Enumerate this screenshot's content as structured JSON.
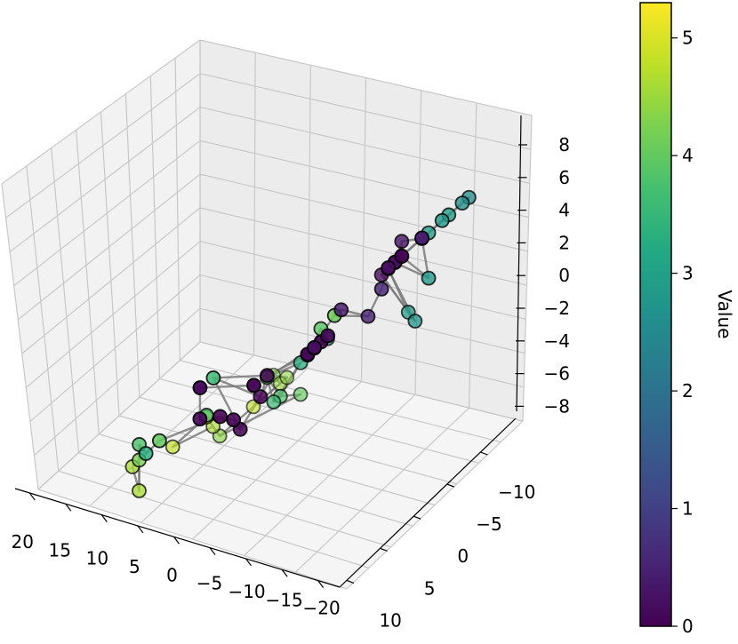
{
  "chart_data": {
    "type": "scatter",
    "projection": "3d",
    "title": "",
    "axes": {
      "x": {
        "label": "",
        "ticks": [
          20,
          15,
          10,
          5,
          0,
          -5,
          -10,
          -15,
          -20
        ]
      },
      "y": {
        "label": "",
        "ticks": [
          -10,
          -5,
          0,
          5,
          10
        ]
      },
      "z": {
        "label": "",
        "ticks": [
          8,
          6,
          4,
          2,
          0,
          -2,
          -4,
          -6,
          -8
        ]
      }
    },
    "tick_text": {
      "x": [
        "20",
        "15",
        "10",
        "5",
        "0",
        "−5",
        "−10",
        "−15",
        "−20"
      ],
      "y": [
        "−10",
        "−5",
        "0",
        "5",
        "10"
      ],
      "z": [
        "8",
        "6",
        "4",
        "2",
        "0",
        "−2",
        "−4",
        "−6",
        "−8"
      ]
    },
    "grid": true,
    "colormap": "viridis",
    "colorbar": {
      "label": "Value",
      "range": [
        0,
        5.3
      ],
      "ticks": [
        0,
        1,
        2,
        3,
        4,
        5
      ],
      "tick_text": [
        "0",
        "1",
        "2",
        "3",
        "4",
        "5"
      ]
    },
    "points": [
      {
        "x": 19,
        "y": -9,
        "z": 5,
        "value": 4.3
      },
      {
        "x": 16,
        "y": -8,
        "z": 3,
        "value": 4.5
      },
      {
        "x": 15,
        "y": -8,
        "z": 3,
        "value": 4.4
      },
      {
        "x": 14,
        "y": -5,
        "z": 0,
        "value": 4.8
      },
      {
        "x": 9,
        "y": -6,
        "z": -1,
        "value": 4.0
      },
      {
        "x": 13,
        "y": -2,
        "z": -3,
        "value": 4.4
      },
      {
        "x": 12,
        "y": -1,
        "z": -3,
        "value": 4.6
      },
      {
        "x": 11,
        "y": 0,
        "z": -3,
        "value": 5.0
      },
      {
        "x": 12,
        "y": 2,
        "z": -5,
        "value": 4.8
      },
      {
        "x": 6,
        "y": -3,
        "z": -3,
        "value": 3.8
      },
      {
        "x": 5,
        "y": -2,
        "z": -4,
        "value": 3.6
      },
      {
        "x": 3,
        "y": -3,
        "z": -2,
        "value": 3.3
      },
      {
        "x": 1,
        "y": -4,
        "z": -1,
        "value": 3.3
      },
      {
        "x": 4,
        "y": -1,
        "z": -3,
        "value": 3.9
      },
      {
        "x": -3,
        "y": -8,
        "z": 0,
        "value": 2.9
      },
      {
        "x": -4,
        "y": -8,
        "z": -1,
        "value": 2.7
      },
      {
        "x": -8,
        "y": -7,
        "z": 0,
        "value": 2.8
      },
      {
        "x": 10,
        "y": 6,
        "z": -8,
        "value": 4.6
      },
      {
        "x": 9,
        "y": 6,
        "z": -10,
        "value": 4.6
      },
      {
        "x": 7,
        "y": 7,
        "z": -9,
        "value": 4.2
      },
      {
        "x": 5,
        "y": 8,
        "z": -9,
        "value": 3.8
      },
      {
        "x": 4,
        "y": 8,
        "z": -10,
        "value": 3.3
      },
      {
        "x": 3,
        "y": 4,
        "z": -7,
        "value": 3.8
      },
      {
        "x": -2,
        "y": 6,
        "z": -7,
        "value": 3.6
      },
      {
        "x": 0,
        "y": 9,
        "z": -11,
        "value": 4.0
      },
      {
        "x": -2,
        "y": -2,
        "z": -2,
        "value": 3.9
      },
      {
        "x": -8,
        "y": 0,
        "z": -4,
        "value": 4.1
      },
      {
        "x": -8,
        "y": -10,
        "z": 6,
        "value": 2.5
      },
      {
        "x": -9,
        "y": -9,
        "z": 5,
        "value": 2.6
      },
      {
        "x": -9,
        "y": -8,
        "z": 4,
        "value": 2.9
      },
      {
        "x": -8,
        "y": -7,
        "z": 3,
        "value": 3.0
      },
      {
        "x": -10,
        "y": -7,
        "z": 3,
        "value": 2.8
      },
      {
        "x": -5,
        "y": -5,
        "z": 1,
        "value": 0.1
      },
      {
        "x": -6,
        "y": -5,
        "z": 1,
        "value": 0.0
      },
      {
        "x": -7,
        "y": -5,
        "z": 1,
        "value": 0.2
      },
      {
        "x": -8,
        "y": -5,
        "z": 1,
        "value": 0.0
      },
      {
        "x": -8,
        "y": -5,
        "z": 2,
        "value": 0.3
      },
      {
        "x": -9,
        "y": -6,
        "z": 2,
        "value": 0.5
      },
      {
        "x": -9,
        "y": -4,
        "z": 0,
        "value": 0.1
      },
      {
        "x": -10,
        "y": -4,
        "z": 0,
        "value": 0.0
      },
      {
        "x": -11,
        "y": -5,
        "z": 1,
        "value": 0.4
      },
      {
        "x": -10,
        "y": -3,
        "z": -1,
        "value": 0.2
      },
      {
        "x": -9,
        "y": -3,
        "z": -2,
        "value": 0.6
      },
      {
        "x": -7,
        "y": -3,
        "z": -3,
        "value": 0.5
      },
      {
        "x": -7,
        "y": -1,
        "z": -3,
        "value": 0.4
      },
      {
        "x": -4,
        "y": 0,
        "z": -5,
        "value": 0.6
      },
      {
        "x": -8,
        "y": 2,
        "z": -7,
        "value": 0.0
      },
      {
        "x": -9,
        "y": 2,
        "z": -7,
        "value": 0.2
      },
      {
        "x": -10,
        "y": 2,
        "z": -7,
        "value": 0.0
      },
      {
        "x": -11,
        "y": 2,
        "z": -7,
        "value": 0.1
      },
      {
        "x": -11,
        "y": 3,
        "z": -8,
        "value": 0.2
      },
      {
        "x": -4,
        "y": 3,
        "z": -7,
        "value": 0.0
      },
      {
        "x": -3,
        "y": 3,
        "z": -8,
        "value": 0.0
      },
      {
        "x": -4,
        "y": 5,
        "z": -11,
        "value": 0.0
      },
      {
        "x": -5,
        "y": 6,
        "z": -11,
        "value": 0.0
      },
      {
        "x": -5,
        "y": 7,
        "z": -11,
        "value": 0.0
      },
      {
        "x": -6,
        "y": 9,
        "z": -12,
        "value": 0.1
      },
      {
        "x": -12,
        "y": 8,
        "z": -12,
        "value": 0.0
      },
      {
        "x": -10,
        "y": 11,
        "z": -12,
        "value": 0.1
      }
    ]
  }
}
